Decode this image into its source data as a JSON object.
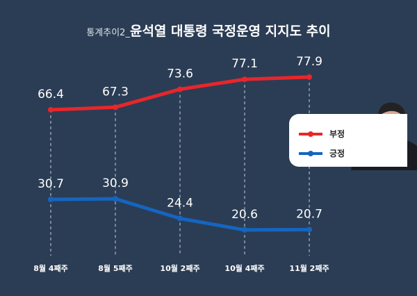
{
  "title": {
    "prefix": "통계추이2_",
    "main": "윤석열 대통령 국정운영 지지도 추이"
  },
  "chart_data": {
    "type": "line",
    "categories": [
      "8월 4째주",
      "8월 5째주",
      "10월 2째주",
      "10월 4째주",
      "11월 2째주"
    ],
    "series": [
      {
        "name": "부정",
        "color": "#e8262b",
        "values": [
          66.4,
          67.3,
          73.6,
          77.1,
          77.9
        ]
      },
      {
        "name": "긍정",
        "color": "#1565c0",
        "values": [
          30.7,
          30.9,
          24.4,
          20.6,
          20.7
        ]
      }
    ],
    "legend": "right",
    "grid": "vertical dashed"
  },
  "colors": {
    "background": "#2b3d54"
  }
}
